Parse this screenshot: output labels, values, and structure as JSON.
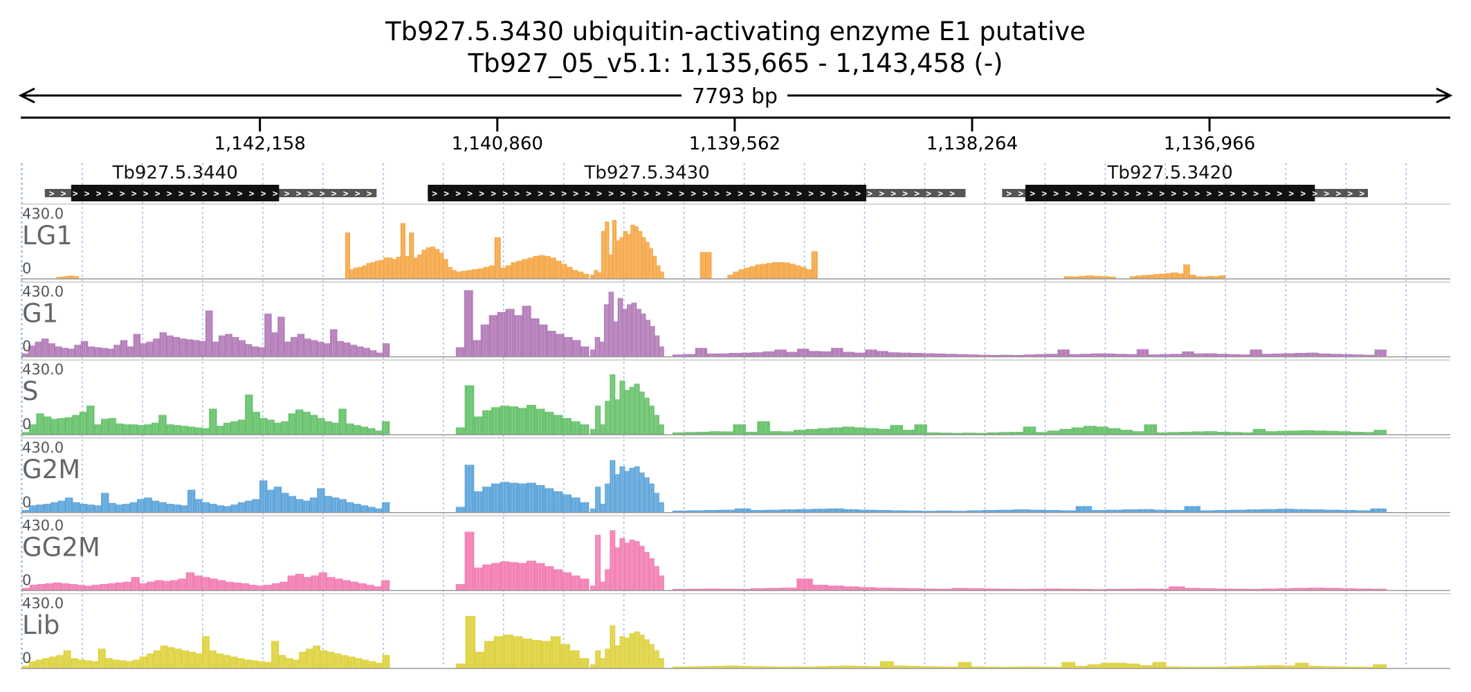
{
  "title": {
    "gene_line": "Tb927.5.3430  ubiquitin-activating enzyme E1  putative",
    "locus_line": "Tb927_05_v5.1: 1,135,665 - 1,143,458 (-)"
  },
  "ruler": {
    "span_label": "7793 bp",
    "ticks": [
      "1,142,158",
      "1,140,860",
      "1,139,562",
      "1,138,264",
      "1,136,966"
    ]
  },
  "colors": {
    "LG1": "#f5a94a",
    "G1": "#b57fba",
    "S": "#6cc470",
    "G2M": "#63a8dc",
    "GG2M": "#f382b5",
    "Lib": "#dfd446",
    "cds": "#111111",
    "utr": "#555555",
    "grid": "#9ec1e6"
  },
  "chart_data": {
    "type": "area",
    "region": {
      "chromosome": "Tb927_05_v5.1",
      "start": 1135665,
      "end": 1143458,
      "strand": "-",
      "length_bp": 7793
    },
    "genes": [
      {
        "id": "Tb927.5.3440",
        "utr_start": 1143334,
        "cds_start": 1143190,
        "cds_end": 1142053,
        "utr_end": 1141520
      },
      {
        "id": "Tb927.5.3430",
        "utr_start": 1141240,
        "cds_start": 1141240,
        "cds_end": 1138843,
        "utr_end": 1138300
      },
      {
        "id": "Tb927.5.3420",
        "utr_start": 1138100,
        "cds_start": 1137973,
        "cds_end": 1136390,
        "utr_end": 1136100
      }
    ],
    "y_range": [
      0,
      430
    ],
    "y_max_label": "430.0",
    "y_min_label": "0",
    "tracks": [
      {
        "name": "LG1",
        "color_key": "LG1",
        "segments": [
          {
            "start": 1143270,
            "end": 1143150,
            "values": [
              5,
              8,
              12,
              14,
              10
            ]
          },
          {
            "start": 1141690,
            "end": 1141085,
            "values": [
              290,
              55,
              65,
              70,
              80,
              95,
              100,
              110,
              115,
              130,
              130,
              120,
              135,
              350,
              140,
              290,
              130,
              150,
              180,
              195,
              200,
              185,
              160,
              120,
              70,
              50
            ]
          },
          {
            "start": 1141085,
            "end": 1140360,
            "values": [
              40,
              45,
              50,
              55,
              60,
              70,
              80,
              260,
              65,
              80,
              100,
              110,
              120,
              130,
              140,
              145,
              140,
              130,
              110,
              90,
              70,
              50,
              40,
              25
            ]
          },
          {
            "start": 1140350,
            "end": 1139950,
            "values": [
              20,
              50,
              35,
              300,
              360,
              150,
              370,
              240,
              260,
              300,
              280,
              340,
              330,
              300,
              260,
              230,
              190,
              140,
              80,
              40
            ]
          },
          {
            "start": 1139750,
            "end": 1139690,
            "values": [
              165,
              165
            ]
          },
          {
            "start": 1139600,
            "end": 1139110,
            "values": [
              20,
              40,
              55,
              65,
              75,
              85,
              90,
              95,
              100,
              100,
              98,
              90,
              80,
              70,
              55,
              170
            ]
          },
          {
            "start": 1137760,
            "end": 1137480,
            "values": [
              10,
              8,
              12,
              15,
              12,
              10,
              8
            ]
          },
          {
            "start": 1137400,
            "end": 1136880,
            "values": [
              10,
              14,
              18,
              20,
              24,
              26,
              30,
              34,
              28,
              85,
              20,
              10,
              8,
              12,
              10,
              16
            ]
          }
        ]
      },
      {
        "name": "G1",
        "color_key": "G1",
        "segments": [
          {
            "start": 1143458,
            "end": 1141450,
            "values": [
              15,
              65,
              90,
              110,
              80,
              60,
              50,
              45,
              70,
              95,
              60,
              55,
              50,
              45,
              70,
              100,
              60,
              140,
              80,
              90,
              110,
              150,
              130,
              120,
              110,
              105,
              100,
              95,
              290,
              90,
              130,
              140,
              120,
              100,
              75,
              60,
              55,
              270,
              150,
              250,
              90,
              120,
              140,
              110,
              100,
              90,
              80,
              170,
              95,
              85,
              70,
              60,
              50,
              35,
              20,
              80
            ]
          },
          {
            "start": 1141085,
            "end": 1140360,
            "values": [
              55,
              420,
              100,
              200,
              260,
              280,
              300,
              260,
              320,
              240,
              200,
              160,
              140,
              120,
              100,
              60
            ]
          },
          {
            "start": 1140350,
            "end": 1139950,
            "values": [
              40,
              120,
              90,
              330,
              410,
              220,
              370,
              300,
              330,
              340,
              300,
              270,
              230,
              190,
              130,
              60
            ]
          },
          {
            "start": 1139900,
            "end": 1136000,
            "values": [
              8,
              10,
              50,
              14,
              15,
              18,
              20,
              22,
              28,
              40,
              25,
              45,
              30,
              28,
              50,
              25,
              20,
              40,
              30,
              22,
              20,
              18,
              16,
              14,
              12,
              10,
              8,
              6,
              5,
              6,
              5,
              8,
              10,
              12,
              40,
              10,
              12,
              15,
              14,
              12,
              10,
              42,
              8,
              10,
              12,
              28,
              14,
              16,
              12,
              10,
              8,
              40,
              12,
              14,
              16,
              18,
              20,
              14,
              12,
              10,
              8,
              6,
              40
            ]
          }
        ]
      },
      {
        "name": "S",
        "color_key": "S",
        "segments": [
          {
            "start": 1143458,
            "end": 1141450,
            "values": [
              10,
              60,
              130,
              110,
              95,
              100,
              105,
              120,
              140,
              180,
              60,
              95,
              100,
              65,
              60,
              60,
              55,
              60,
              70,
              120,
              60,
              55,
              50,
              45,
              40,
              35,
              160,
              50,
              70,
              80,
              90,
              250,
              140,
              100,
              90,
              70,
              80,
              130,
              155,
              140,
              120,
              100,
              80,
              70,
              160,
              65,
              55,
              45,
              35,
              20,
              80
            ]
          },
          {
            "start": 1141085,
            "end": 1140360,
            "values": [
              40,
              310,
              110,
              150,
              170,
              180,
              175,
              165,
              185,
              160,
              140,
              120,
              100,
              80,
              60
            ]
          },
          {
            "start": 1140350,
            "end": 1139950,
            "values": [
              30,
              180,
              60,
              210,
              380,
              220,
              340,
              280,
              300,
              320,
              270,
              230,
              180,
              120,
              60
            ]
          },
          {
            "start": 1139900,
            "end": 1136000,
            "values": [
              8,
              10,
              12,
              15,
              14,
              60,
              12,
              80,
              16,
              14,
              25,
              30,
              35,
              40,
              45,
              40,
              35,
              30,
              55,
              25,
              60,
              8,
              6,
              5,
              6,
              5,
              8,
              10,
              12,
              45,
              10,
              20,
              30,
              40,
              50,
              45,
              35,
              25,
              15,
              60,
              8,
              10,
              12,
              14,
              16,
              12,
              10,
              8,
              30,
              15,
              18,
              20,
              22,
              20,
              18,
              15,
              12,
              10,
              25
            ]
          }
        ]
      },
      {
        "name": "G2M",
        "color_key": "G2M",
        "segments": [
          {
            "start": 1143458,
            "end": 1141450,
            "values": [
              10,
              40,
              45,
              50,
              60,
              70,
              90,
              60,
              50,
              45,
              40,
              120,
              55,
              45,
              50,
              60,
              80,
              90,
              70,
              60,
              50,
              45,
              40,
              140,
              80,
              60,
              50,
              40,
              35,
              45,
              60,
              70,
              80,
              200,
              140,
              160,
              120,
              100,
              80,
              70,
              90,
              150,
              100,
              90,
              80,
              60,
              50,
              40,
              30,
              20,
              60
            ]
          },
          {
            "start": 1141085,
            "end": 1140360,
            "values": [
              30,
              300,
              130,
              160,
              180,
              190,
              185,
              180,
              185,
              170,
              150,
              130,
              110,
              90,
              60
            ]
          },
          {
            "start": 1140350,
            "end": 1139950,
            "values": [
              20,
              160,
              50,
              180,
              330,
              240,
              290,
              260,
              280,
              290,
              250,
              220,
              180,
              120,
              60
            ]
          },
          {
            "start": 1139900,
            "end": 1136000,
            "values": [
              6,
              8,
              10,
              12,
              20,
              10,
              12,
              14,
              16,
              18,
              20,
              15,
              12,
              10,
              8,
              6,
              5,
              6,
              5,
              8,
              10,
              12,
              14,
              12,
              10,
              8,
              35,
              10,
              12,
              14,
              16,
              12,
              10,
              35,
              8,
              10,
              12,
              14,
              16,
              18,
              16,
              14,
              12,
              10,
              8,
              20
            ]
          }
        ]
      },
      {
        "name": "GG2M",
        "color_key": "GG2M",
        "segments": [
          {
            "start": 1143458,
            "end": 1141450,
            "values": [
              10,
              30,
              35,
              40,
              45,
              40,
              35,
              30,
              25,
              30,
              35,
              40,
              45,
              50,
              80,
              40,
              50,
              60,
              55,
              60,
              70,
              110,
              90,
              80,
              70,
              60,
              50,
              45,
              40,
              30,
              25,
              30,
              40,
              50,
              90,
              100,
              80,
              90,
              110,
              80,
              70,
              60,
              50,
              40,
              30,
              20,
              60
            ]
          },
          {
            "start": 1141085,
            "end": 1140360,
            "values": [
              35,
              370,
              140,
              160,
              170,
              180,
              175,
              170,
              185,
              170,
              150,
              130,
              110,
              90,
              70
            ]
          },
          {
            "start": 1140350,
            "end": 1139950,
            "values": [
              25,
              350,
              50,
              130,
              380,
              270,
              330,
              300,
              320,
              310,
              280,
              240,
              200,
              150,
              90
            ]
          },
          {
            "start": 1139900,
            "end": 1136000,
            "values": [
              4,
              5,
              6,
              5,
              4,
              8,
              10,
              12,
              70,
              30,
              25,
              20,
              15,
              12,
              10,
              8,
              6,
              5,
              10,
              8,
              6,
              5,
              4,
              5,
              6,
              5,
              4,
              3,
              4,
              5,
              6,
              5,
              20,
              10,
              8,
              6,
              5,
              4,
              6,
              8,
              10,
              12,
              10,
              8,
              6,
              5
            ]
          }
        ]
      },
      {
        "name": "Lib",
        "color_key": "Lib",
        "segments": [
          {
            "start": 1143458,
            "end": 1141450,
            "values": [
              10,
              40,
              50,
              60,
              70,
              80,
              110,
              60,
              50,
              45,
              40,
              120,
              60,
              50,
              45,
              40,
              50,
              70,
              90,
              110,
              140,
              130,
              120,
              110,
              100,
              90,
              200,
              110,
              90,
              80,
              70,
              60,
              50,
              45,
              40,
              35,
              170,
              80,
              60,
              50,
              100,
              120,
              140,
              110,
              100,
              90,
              80,
              70,
              60,
              50,
              40,
              30,
              80
            ]
          },
          {
            "start": 1141085,
            "end": 1140360,
            "values": [
              25,
              330,
              100,
              170,
              200,
              210,
              200,
              185,
              175,
              170,
              200,
              150,
              110,
              60
            ]
          },
          {
            "start": 1140350,
            "end": 1139950,
            "values": [
              20,
              110,
              60,
              120,
              270,
              140,
              200,
              190,
              220,
              230,
              210,
              180,
              150,
              110,
              60
            ]
          },
          {
            "start": 1139900,
            "end": 1136000,
            "values": [
              5,
              6,
              8,
              10,
              12,
              10,
              8,
              6,
              5,
              6,
              5,
              8,
              10,
              12,
              10,
              8,
              40,
              12,
              10,
              8,
              6,
              5,
              35,
              6,
              5,
              4,
              5,
              6,
              5,
              4,
              35,
              10,
              20,
              30,
              30,
              25,
              15,
              35,
              6,
              5,
              4,
              5,
              6,
              8,
              10,
              12,
              14,
              12,
              30,
              10,
              8,
              6,
              5,
              4,
              20
            ]
          }
        ]
      }
    ]
  }
}
